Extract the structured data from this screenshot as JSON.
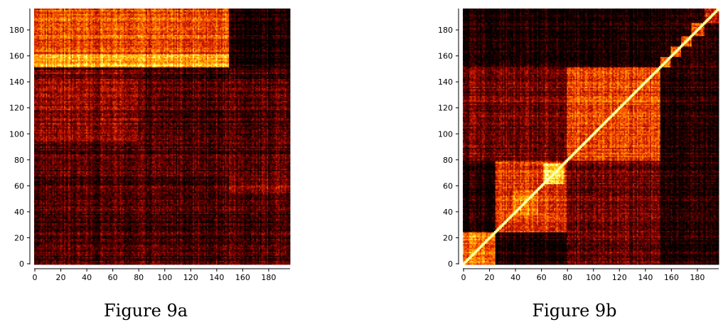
{
  "chart_data": [
    {
      "type": "heatmap",
      "caption": "Figure 9a",
      "size": 197,
      "xlim": [
        0,
        197
      ],
      "ylim": [
        0,
        197
      ],
      "x_ticks": [
        0,
        20,
        40,
        60,
        80,
        100,
        120,
        140,
        160,
        180
      ],
      "y_ticks": [
        0,
        20,
        40,
        60,
        80,
        100,
        120,
        140,
        160,
        180
      ],
      "colormap": "hot",
      "colors": [
        "#000000",
        "#2a0000",
        "#7a0000",
        "#c41a00",
        "#ff5a00",
        "#ffb400",
        "#ffff66",
        "#ffffff"
      ],
      "structure": {
        "diagonal": false,
        "bright_band": {
          "rows": [
            152,
            197
          ],
          "cols": [
            0,
            150
          ],
          "level": 0.55
        },
        "peak_rows": [
          152,
          162
        ],
        "dark_block": {
          "rows": [
            152,
            197
          ],
          "cols": [
            150,
            197
          ],
          "level": 0.08
        },
        "mid_blocks": [
          {
            "rows": [
              95,
              150
            ],
            "cols": [
              0,
              80
            ],
            "level": 0.32
          },
          {
            "rows": [
              55,
              68
            ],
            "cols": [
              150,
              197
            ],
            "level": 0.3
          }
        ],
        "background_level": 0.2
      }
    },
    {
      "type": "heatmap",
      "caption": "Figure 9b",
      "size": 197,
      "xlim": [
        0,
        197
      ],
      "ylim": [
        0,
        197
      ],
      "x_ticks": [
        0,
        20,
        40,
        60,
        80,
        100,
        120,
        140,
        160,
        180
      ],
      "y_ticks": [
        0,
        20,
        40,
        60,
        80,
        100,
        120,
        140,
        160,
        180
      ],
      "colormap": "hot",
      "colors": [
        "#000000",
        "#2a0000",
        "#7a0000",
        "#c41a00",
        "#ff5a00",
        "#ffb400",
        "#ffff66",
        "#ffffff"
      ],
      "structure": {
        "diagonal": true,
        "blocks": [
          {
            "range": [
              0,
              25
            ],
            "level": 0.62
          },
          {
            "range": [
              25,
              80
            ],
            "level": 0.5
          },
          {
            "range": [
              38,
              58
            ],
            "level": 0.62
          },
          {
            "range": [
              62,
              78
            ],
            "level": 0.82
          },
          {
            "range": [
              80,
              152
            ],
            "level": 0.55
          },
          {
            "range": [
              152,
              197
            ],
            "level": 0.12
          },
          {
            "range": [
              152,
              160
            ],
            "level": 0.6
          },
          {
            "range": [
              160,
              168
            ],
            "level": 0.6
          },
          {
            "range": [
              168,
              176
            ],
            "level": 0.55
          },
          {
            "range": [
              176,
              186
            ],
            "level": 0.5
          },
          {
            "range": [
              186,
              197
            ],
            "level": 0.45
          }
        ],
        "cross_blocks": [
          {
            "rows": [
              0,
              80
            ],
            "cols": [
              80,
              152
            ],
            "level": 0.28
          },
          {
            "rows": [
              80,
              152
            ],
            "cols": [
              0,
              80
            ],
            "level": 0.28
          }
        ],
        "background_level": 0.1
      }
    }
  ]
}
